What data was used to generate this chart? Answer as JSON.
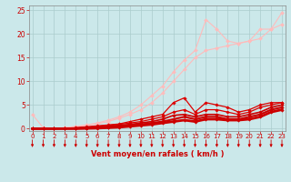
{
  "background_color": "#cbe8ea",
  "grid_color": "#aacccc",
  "xlabel": "Vent moyen/en rafales ( km/h )",
  "xlabel_color": "#cc0000",
  "tick_color": "#cc0000",
  "yticks": [
    0,
    5,
    10,
    15,
    20,
    25
  ],
  "xticks": [
    0,
    1,
    2,
    3,
    4,
    5,
    6,
    7,
    8,
    9,
    10,
    11,
    12,
    13,
    14,
    15,
    16,
    17,
    18,
    19,
    20,
    21,
    22,
    23
  ],
  "xmin": -0.3,
  "xmax": 23.3,
  "ymin": -0.5,
  "ymax": 26,
  "series": [
    {
      "x": [
        0,
        1,
        2,
        3,
        4,
        5,
        6,
        7,
        8,
        9,
        10,
        11,
        12,
        13,
        14,
        15,
        16,
        17,
        18,
        19,
        20,
        21,
        22,
        23
      ],
      "y": [
        3,
        0.2,
        0.1,
        0.2,
        0.5,
        0.8,
        1.2,
        1.8,
        2.5,
        3.5,
        5,
        7,
        9,
        12,
        14.5,
        16.5,
        23,
        21,
        18.5,
        18,
        18.5,
        21,
        21,
        24.5
      ],
      "color": "#ffbbbb",
      "linewidth": 0.8,
      "marker": "D",
      "markersize": 2.0,
      "zorder": 2
    },
    {
      "x": [
        0,
        1,
        2,
        3,
        4,
        5,
        6,
        7,
        8,
        9,
        10,
        11,
        12,
        13,
        14,
        15,
        16,
        17,
        18,
        19,
        20,
        21,
        22,
        23
      ],
      "y": [
        0,
        0,
        0.1,
        0.2,
        0.4,
        0.7,
        1.0,
        1.5,
        2.2,
        3.0,
        4.0,
        5.5,
        7.5,
        10,
        12.5,
        15,
        16.5,
        17,
        17.5,
        18,
        18.5,
        19,
        21,
        22
      ],
      "color": "#ffbbbb",
      "linewidth": 0.8,
      "marker": "D",
      "markersize": 2.0,
      "zorder": 2
    },
    {
      "x": [
        0,
        1,
        2,
        3,
        4,
        5,
        6,
        7,
        8,
        9,
        10,
        11,
        12,
        13,
        14,
        15,
        16,
        17,
        18,
        19,
        20,
        21,
        22,
        23
      ],
      "y": [
        0,
        0,
        0,
        0.1,
        0.2,
        0.4,
        0.6,
        0.8,
        1.0,
        1.5,
        2.0,
        2.5,
        3.0,
        5.5,
        6.5,
        3.5,
        5.5,
        5.0,
        4.5,
        3.5,
        4.0,
        5.0,
        5.5,
        5.5
      ],
      "color": "#dd0000",
      "linewidth": 0.9,
      "marker": "D",
      "markersize": 1.8,
      "zorder": 3
    },
    {
      "x": [
        0,
        1,
        2,
        3,
        4,
        5,
        6,
        7,
        8,
        9,
        10,
        11,
        12,
        13,
        14,
        15,
        16,
        17,
        18,
        19,
        20,
        21,
        22,
        23
      ],
      "y": [
        0,
        0,
        0,
        0.05,
        0.15,
        0.3,
        0.5,
        0.7,
        0.9,
        1.2,
        1.5,
        2.0,
        2.5,
        3.5,
        4.0,
        3.0,
        4.0,
        4.0,
        3.5,
        3.0,
        3.5,
        4.5,
        5.0,
        5.5
      ],
      "color": "#dd0000",
      "linewidth": 0.9,
      "marker": "D",
      "markersize": 1.8,
      "zorder": 3
    },
    {
      "x": [
        0,
        1,
        2,
        3,
        4,
        5,
        6,
        7,
        8,
        9,
        10,
        11,
        12,
        13,
        14,
        15,
        16,
        17,
        18,
        19,
        20,
        21,
        22,
        23
      ],
      "y": [
        0,
        0,
        0,
        0.05,
        0.1,
        0.2,
        0.35,
        0.5,
        0.7,
        0.9,
        1.2,
        1.5,
        2.0,
        2.8,
        3.0,
        2.5,
        3.0,
        3.0,
        2.5,
        2.5,
        3.0,
        3.5,
        4.5,
        5.0
      ],
      "color": "#cc0000",
      "linewidth": 1.2,
      "marker": "D",
      "markersize": 1.8,
      "zorder": 3
    },
    {
      "x": [
        0,
        1,
        2,
        3,
        4,
        5,
        6,
        7,
        8,
        9,
        10,
        11,
        12,
        13,
        14,
        15,
        16,
        17,
        18,
        19,
        20,
        21,
        22,
        23
      ],
      "y": [
        0,
        0,
        0,
        0,
        0.05,
        0.1,
        0.2,
        0.35,
        0.5,
        0.7,
        0.9,
        1.2,
        1.5,
        2.0,
        2.5,
        2.0,
        2.5,
        2.5,
        2.0,
        2.0,
        2.5,
        3.0,
        4.0,
        4.5
      ],
      "color": "#cc0000",
      "linewidth": 1.5,
      "marker": "D",
      "markersize": 1.8,
      "zorder": 3
    },
    {
      "x": [
        0,
        1,
        2,
        3,
        4,
        5,
        6,
        7,
        8,
        9,
        10,
        11,
        12,
        13,
        14,
        15,
        16,
        17,
        18,
        19,
        20,
        21,
        22,
        23
      ],
      "y": [
        0,
        0,
        0,
        0,
        0,
        0.05,
        0.1,
        0.2,
        0.3,
        0.5,
        0.7,
        0.9,
        1.2,
        1.5,
        1.8,
        1.5,
        2.0,
        2.0,
        1.8,
        1.8,
        2.0,
        2.5,
        3.5,
        4.0
      ],
      "color": "#cc0000",
      "linewidth": 2.0,
      "marker": "D",
      "markersize": 1.8,
      "zorder": 4
    }
  ]
}
